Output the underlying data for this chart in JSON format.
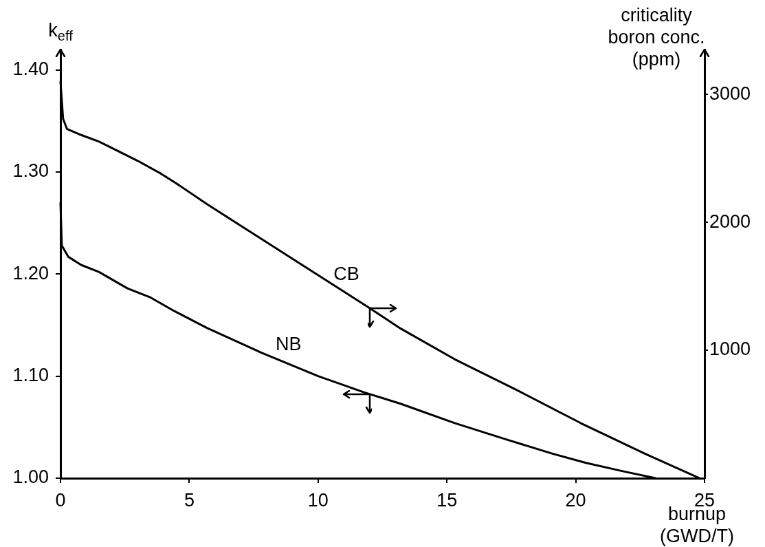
{
  "chart_data": {
    "type": "line",
    "xlabel": "burnup\n(GWD/T)",
    "ylabel": "k$_{eff}$",
    "y2label": "criticality\nboron conc.\n(ppm)",
    "xlim": [
      0,
      25
    ],
    "xticks": [
      0,
      5,
      10,
      15,
      20,
      25
    ],
    "ylim": [
      1,
      1.42
    ],
    "yticks": [
      {
        "value": 1,
        "label": "1.00"
      },
      {
        "value": 1.1,
        "label": "1.10"
      },
      {
        "value": 1.2,
        "label": "1.20"
      },
      {
        "value": 1.3,
        "label": "1.30"
      },
      {
        "value": 1.4,
        "label": "1.40"
      }
    ],
    "y2lim": [
      0,
      3350
    ],
    "y2ticks": [
      1000,
      2000,
      3000
    ],
    "marker": "none",
    "series": [
      {
        "name": "CB",
        "color": "#000000",
        "axis": "y2",
        "x": [
          0,
          0.1,
          0.25,
          0.7,
          1.5,
          2.4,
          3.0,
          3.9,
          4.6,
          5.7,
          7.8,
          9.9,
          12.0,
          13.2,
          15.3,
          16.0,
          17.7,
          20.2,
          22.7,
          24.8
        ],
        "values": [
          3100,
          2810,
          2730,
          2690,
          2630,
          2540,
          2480,
          2380,
          2290,
          2140,
          1870,
          1600,
          1330,
          1170,
          930,
          860,
          690,
          430,
          190,
          0
        ]
      },
      {
        "name": "NB",
        "color": "#000000",
        "x": [
          0,
          0.05,
          0.3,
          0.8,
          1.5,
          2.6,
          3.5,
          4.4,
          5.7,
          7.8,
          10.0,
          11.8,
          13.2,
          15.3,
          17.3,
          19.1,
          20.4,
          21.8,
          23.1
        ],
        "values": [
          1.27,
          1.228,
          1.217,
          1.209,
          1.202,
          1.186,
          1.177,
          1.164,
          1.147,
          1.123,
          1.1,
          1.084,
          1.073,
          1.054,
          1.038,
          1.024,
          1.015,
          1.007,
          1.0
        ]
      }
    ]
  }
}
